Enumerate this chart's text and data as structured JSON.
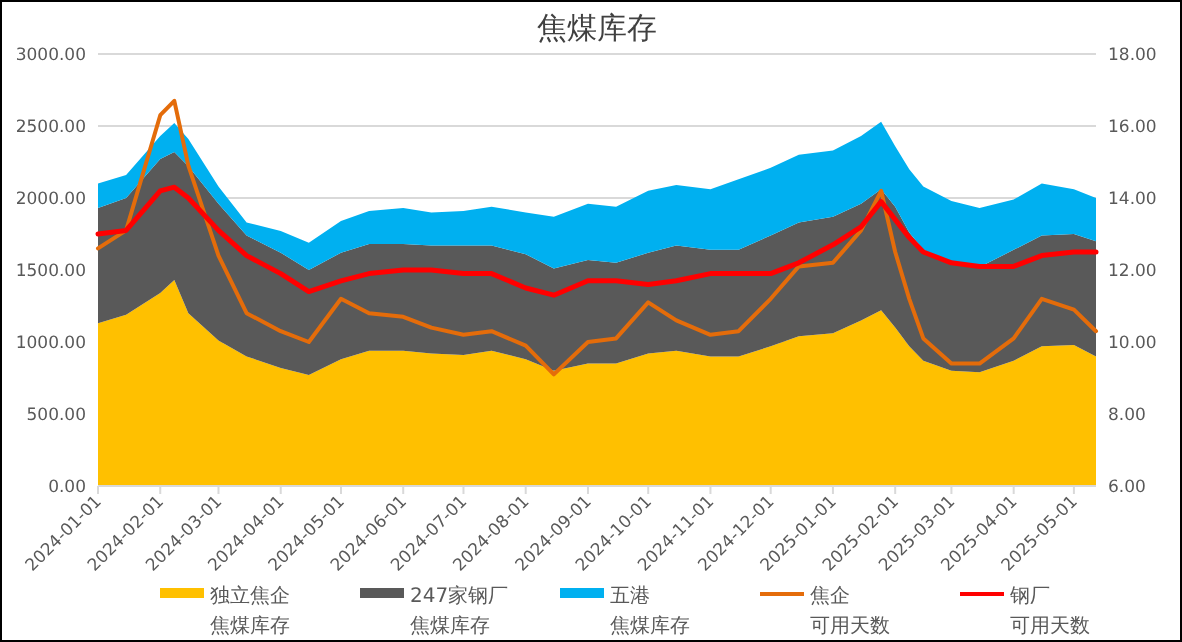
{
  "chart_data": {
    "type": "area",
    "title": "焦煤库存",
    "stacked": true,
    "grid": "y",
    "legend": "bottom",
    "line_style": "solid",
    "marker": "none",
    "x": [
      "2024-01-01",
      "2024-01-15",
      "2024-02-01",
      "2024-02-08",
      "2024-02-15",
      "2024-03-01",
      "2024-03-15",
      "2024-04-01",
      "2024-04-15",
      "2024-05-01",
      "2024-05-15",
      "2024-06-01",
      "2024-06-15",
      "2024-07-01",
      "2024-07-15",
      "2024-08-01",
      "2024-08-15",
      "2024-09-01",
      "2024-09-15",
      "2024-10-01",
      "2024-10-15",
      "2024-11-01",
      "2024-11-15",
      "2024-12-01",
      "2024-12-15",
      "2025-01-01",
      "2025-01-15",
      "2025-01-25",
      "2025-02-01",
      "2025-02-08",
      "2025-02-15",
      "2025-03-01",
      "2025-03-15",
      "2025-04-01",
      "2025-04-15",
      "2025-05-01",
      "2025-05-12"
    ],
    "xlim": [
      "2024-01-01",
      "2025-05-12"
    ],
    "xticks": [
      "2024-01-01",
      "2024-02-01",
      "2024-03-01",
      "2024-04-01",
      "2024-05-01",
      "2024-06-01",
      "2024-07-01",
      "2024-08-01",
      "2024-09-01",
      "2024-10-01",
      "2024-11-01",
      "2024-12-01",
      "2025-01-01",
      "2025-02-01",
      "2025-03-01",
      "2025-04-01",
      "2025-05-01"
    ],
    "ylim": [
      0,
      3000
    ],
    "yticks": [
      {
        "value": 0,
        "label": "0.00"
      },
      {
        "value": 500,
        "label": "500.00"
      },
      {
        "value": 1000,
        "label": "1000.00"
      },
      {
        "value": 1500,
        "label": "1500.00"
      },
      {
        "value": 2000,
        "label": "2000.00"
      },
      {
        "value": 2500,
        "label": "2500.00"
      },
      {
        "value": 3000,
        "label": "3000.00"
      }
    ],
    "y2lim": [
      6,
      18
    ],
    "y2ticks": [
      {
        "value": 6,
        "label": "6.00"
      },
      {
        "value": 8,
        "label": "8.00"
      },
      {
        "value": 10,
        "label": "10.00"
      },
      {
        "value": 12,
        "label": "12.00"
      },
      {
        "value": 14,
        "label": "14.00"
      },
      {
        "value": 16,
        "label": "16.00"
      },
      {
        "value": 18,
        "label": "18.00"
      }
    ],
    "series": [
      {
        "name": "独立焦企焦煤库存",
        "color": "#ffc000",
        "values": [
          1130,
          1190,
          1340,
          1430,
          1200,
          1010,
          900,
          820,
          770,
          880,
          940,
          940,
          920,
          910,
          940,
          880,
          800,
          850,
          850,
          920,
          940,
          900,
          900,
          970,
          1040,
          1060,
          1150,
          1220,
          1100,
          970,
          870,
          800,
          790,
          870,
          970,
          980,
          900
        ]
      },
      {
        "name": "247家钢厂焦煤库存",
        "color": "#595959",
        "values": [
          800,
          810,
          930,
          890,
          1020,
          950,
          840,
          800,
          730,
          740,
          740,
          740,
          750,
          760,
          730,
          730,
          710,
          720,
          700,
          700,
          730,
          740,
          740,
          770,
          790,
          810,
          810,
          840,
          840,
          790,
          770,
          740,
          730,
          770,
          770,
          770,
          800
        ]
      },
      {
        "name": "五港焦煤库存",
        "color": "#00b0f0",
        "values": [
          170,
          160,
          160,
          200,
          190,
          120,
          90,
          150,
          190,
          220,
          230,
          250,
          230,
          240,
          270,
          290,
          360,
          390,
          390,
          430,
          420,
          420,
          490,
          470,
          470,
          460,
          470,
          470,
          420,
          440,
          440,
          440,
          410,
          350,
          360,
          310,
          300
        ]
      },
      {
        "name": "焦企可用天数",
        "type": "line",
        "axis": "y2",
        "color": "#e46c0a",
        "values": [
          12.6,
          13.1,
          16.3,
          16.7,
          14.9,
          12.4,
          10.8,
          10.3,
          10.0,
          11.2,
          10.8,
          10.7,
          10.4,
          10.2,
          10.3,
          9.9,
          9.1,
          10.0,
          10.1,
          11.1,
          10.6,
          10.2,
          10.3,
          11.2,
          12.1,
          12.2,
          13.1,
          14.2,
          12.5,
          11.2,
          10.1,
          9.4,
          9.4,
          10.1,
          11.2,
          10.9,
          10.3
        ]
      },
      {
        "name": "钢厂可用天数",
        "type": "line",
        "axis": "y2",
        "color": "#ff0000",
        "values": [
          13.0,
          13.1,
          14.2,
          14.3,
          14.0,
          13.1,
          12.4,
          11.9,
          11.4,
          11.7,
          11.9,
          12.0,
          12.0,
          11.9,
          11.9,
          11.5,
          11.3,
          11.7,
          11.7,
          11.6,
          11.7,
          11.9,
          11.9,
          11.9,
          12.2,
          12.7,
          13.2,
          13.9,
          13.4,
          12.9,
          12.5,
          12.2,
          12.1,
          12.1,
          12.4,
          12.5,
          12.5
        ]
      }
    ]
  }
}
